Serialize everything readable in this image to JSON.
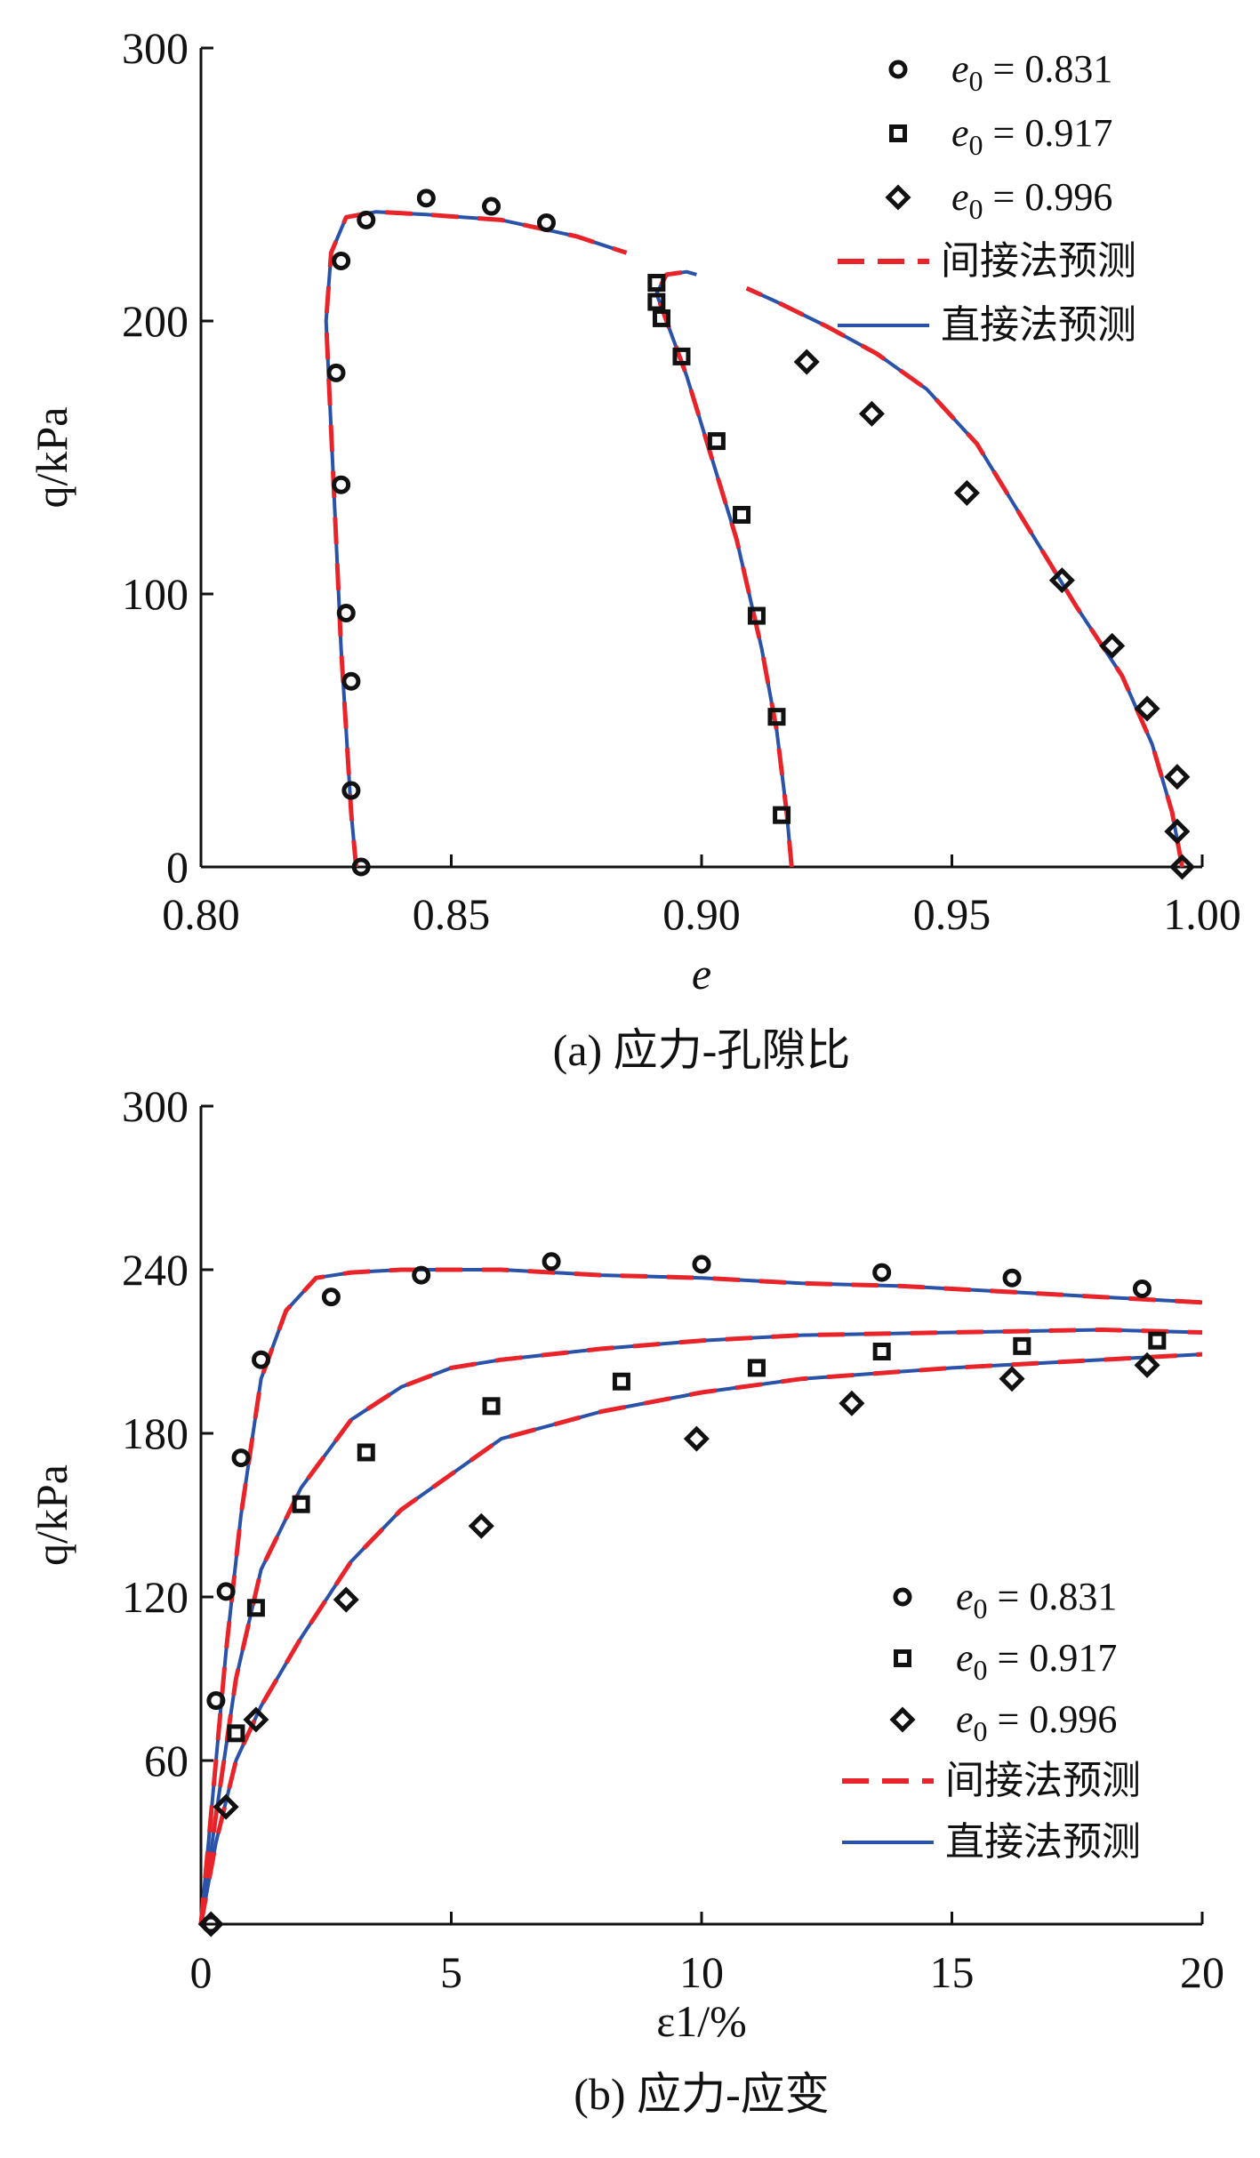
{
  "colors": {
    "indirect": "#e8242a",
    "direct": "#2a52a8",
    "marker": "#111111"
  },
  "chart_data": [
    {
      "type": "scatter+line",
      "caption": "(a) 应力-孔隙比",
      "xlabel": "e",
      "ylabel": "q/kPa",
      "xlim": [
        0.8,
        1.0
      ],
      "ylim": [
        0,
        300
      ],
      "xticks": [
        "0.80",
        "0.85",
        "0.90",
        "0.95",
        "1.00"
      ],
      "yticks": [
        "0",
        "100",
        "200",
        "300"
      ],
      "legend_position": "top-right",
      "legend": [
        "e0 = 0.831",
        "e0 = 0.917",
        "e0 = 0.996",
        "间接法预测",
        "直接法预测"
      ],
      "points": [
        {
          "name": "e0 = 0.831",
          "marker": "circle",
          "data": [
            [
              0.832,
              0
            ],
            [
              0.83,
              28
            ],
            [
              0.83,
              68
            ],
            [
              0.829,
              93
            ],
            [
              0.828,
              140
            ],
            [
              0.827,
              181
            ],
            [
              0.828,
              222
            ],
            [
              0.833,
              237
            ],
            [
              0.845,
              245
            ],
            [
              0.858,
              242
            ],
            [
              0.869,
              236
            ]
          ]
        },
        {
          "name": "e0 = 0.917",
          "marker": "square",
          "data": [
            [
              0.916,
              19
            ],
            [
              0.915,
              55
            ],
            [
              0.911,
              92
            ],
            [
              0.908,
              129
            ],
            [
              0.903,
              156
            ],
            [
              0.896,
              187
            ],
            [
              0.892,
              201
            ],
            [
              0.891,
              207
            ],
            [
              0.891,
              214
            ]
          ]
        },
        {
          "name": "e0 = 0.996",
          "marker": "diamond",
          "data": [
            [
              0.996,
              0
            ],
            [
              0.995,
              13
            ],
            [
              0.995,
              33
            ],
            [
              0.989,
              58
            ],
            [
              0.982,
              81
            ],
            [
              0.972,
              105
            ],
            [
              0.953,
              137
            ],
            [
              0.934,
              166
            ],
            [
              0.921,
              185
            ]
          ]
        }
      ],
      "curves": [
        [
          [
            0.831,
            0
          ],
          [
            0.83,
            20
          ],
          [
            0.829,
            50
          ],
          [
            0.828,
            80
          ],
          [
            0.827,
            120
          ],
          [
            0.826,
            160
          ],
          [
            0.825,
            200
          ],
          [
            0.826,
            225
          ],
          [
            0.829,
            238
          ],
          [
            0.835,
            240
          ],
          [
            0.845,
            239
          ],
          [
            0.86,
            237
          ],
          [
            0.875,
            231
          ],
          [
            0.885,
            225
          ]
        ],
        [
          [
            0.918,
            0
          ],
          [
            0.917,
            20
          ],
          [
            0.915,
            50
          ],
          [
            0.912,
            80
          ],
          [
            0.907,
            120
          ],
          [
            0.902,
            150
          ],
          [
            0.897,
            180
          ],
          [
            0.893,
            200
          ],
          [
            0.891,
            210
          ],
          [
            0.893,
            217
          ],
          [
            0.897,
            218
          ],
          [
            0.899,
            217
          ]
        ],
        [
          [
            0.996,
            0
          ],
          [
            0.994,
            20
          ],
          [
            0.99,
            45
          ],
          [
            0.984,
            70
          ],
          [
            0.975,
            95
          ],
          [
            0.965,
            125
          ],
          [
            0.955,
            155
          ],
          [
            0.945,
            175
          ],
          [
            0.935,
            188
          ],
          [
            0.925,
            198
          ],
          [
            0.915,
            207
          ],
          [
            0.909,
            212
          ]
        ]
      ]
    },
    {
      "type": "scatter+line",
      "caption": "(b) 应力-应变",
      "xlabel": "ε1/%",
      "ylabel": "q/kPa",
      "xlim": [
        0,
        20
      ],
      "ylim": [
        0,
        300
      ],
      "xticks": [
        "0",
        "5",
        "10",
        "15",
        "20"
      ],
      "yticks": [
        "60",
        "120",
        "180",
        "240",
        "300"
      ],
      "legend_position": "bottom-right",
      "legend": [
        "e0 = 0.831",
        "e0 = 0.917",
        "e0 = 0.996",
        "间接法预测",
        "直接法预测"
      ],
      "points": [
        {
          "name": "e0 = 0.831",
          "marker": "circle",
          "data": [
            [
              0.2,
              0
            ],
            [
              0.3,
              82
            ],
            [
              0.5,
              122
            ],
            [
              0.8,
              171
            ],
            [
              1.2,
              207
            ],
            [
              2.6,
              230
            ],
            [
              4.4,
              238
            ],
            [
              7.0,
              243
            ],
            [
              10.0,
              242
            ],
            [
              13.6,
              239
            ],
            [
              16.2,
              237
            ],
            [
              18.8,
              233
            ]
          ]
        },
        {
          "name": "e0 = 0.917",
          "marker": "square",
          "data": [
            [
              0.7,
              70
            ],
            [
              1.1,
              116
            ],
            [
              2.0,
              154
            ],
            [
              3.3,
              173
            ],
            [
              5.8,
              190
            ],
            [
              8.4,
              199
            ],
            [
              11.1,
              204
            ],
            [
              13.6,
              210
            ],
            [
              16.4,
              212
            ],
            [
              19.1,
              214
            ]
          ]
        },
        {
          "name": "e0 = 0.996",
          "marker": "diamond",
          "data": [
            [
              0.2,
              0
            ],
            [
              0.5,
              43
            ],
            [
              1.1,
              75
            ],
            [
              2.9,
              119
            ],
            [
              5.6,
              146
            ],
            [
              9.9,
              178
            ],
            [
              13.0,
              191
            ],
            [
              16.2,
              200
            ],
            [
              18.9,
              205
            ]
          ]
        }
      ],
      "curves": [
        [
          [
            0,
            0
          ],
          [
            0.2,
            40
          ],
          [
            0.5,
            100
          ],
          [
            0.8,
            150
          ],
          [
            1.2,
            200
          ],
          [
            1.7,
            225
          ],
          [
            2.3,
            237
          ],
          [
            3.0,
            239
          ],
          [
            4,
            240
          ],
          [
            6,
            240
          ],
          [
            8,
            238
          ],
          [
            10,
            237
          ],
          [
            12,
            235
          ],
          [
            14,
            234
          ],
          [
            16,
            232
          ],
          [
            18,
            230
          ],
          [
            20,
            228
          ]
        ],
        [
          [
            0,
            0
          ],
          [
            0.3,
            40
          ],
          [
            0.7,
            90
          ],
          [
            1.2,
            130
          ],
          [
            2,
            160
          ],
          [
            3,
            185
          ],
          [
            4,
            197
          ],
          [
            5,
            204
          ],
          [
            6,
            207
          ],
          [
            8,
            211
          ],
          [
            10,
            214
          ],
          [
            12,
            216
          ],
          [
            15,
            217
          ],
          [
            18,
            218
          ],
          [
            20,
            217
          ]
        ],
        [
          [
            0,
            0
          ],
          [
            0.3,
            30
          ],
          [
            0.7,
            60
          ],
          [
            1.2,
            80
          ],
          [
            2,
            105
          ],
          [
            3,
            133
          ],
          [
            4,
            152
          ],
          [
            5,
            165
          ],
          [
            6,
            178
          ],
          [
            8,
            188
          ],
          [
            10,
            195
          ],
          [
            12,
            200
          ],
          [
            15,
            204
          ],
          [
            18,
            207
          ],
          [
            20,
            209
          ]
        ]
      ]
    }
  ]
}
